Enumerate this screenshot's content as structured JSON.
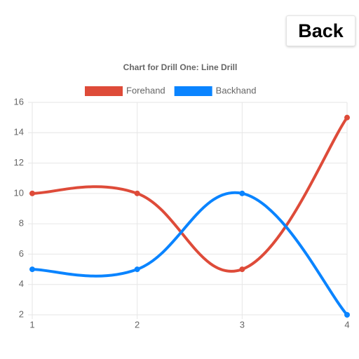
{
  "back_button": "Back",
  "chart_data": {
    "type": "line",
    "title": "Chart for Drill One: Line Drill",
    "x": [
      1,
      2,
      3,
      4
    ],
    "xlim": [
      1,
      4
    ],
    "xticks": [
      1,
      2,
      3,
      4
    ],
    "ylim": [
      2,
      16
    ],
    "yticks": [
      2,
      4,
      6,
      8,
      10,
      12,
      14,
      16
    ],
    "grid": true,
    "legend": "top",
    "series": [
      {
        "name": "Forehand",
        "color": "#de4b39",
        "values": [
          10,
          10,
          5,
          15
        ]
      },
      {
        "name": "Backhand",
        "color": "#0a84ff",
        "values": [
          5,
          5,
          10,
          2
        ]
      }
    ]
  }
}
